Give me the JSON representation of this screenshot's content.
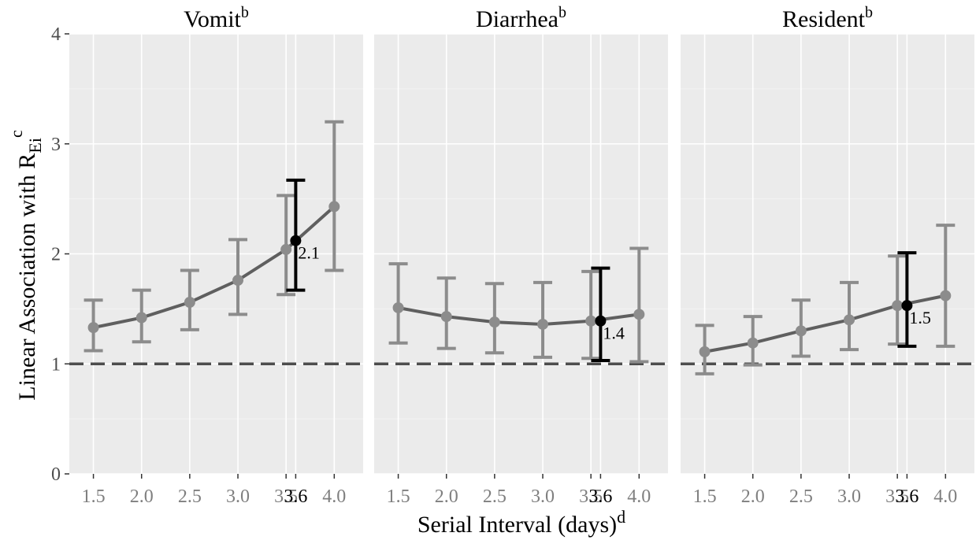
{
  "chart_data": {
    "type": "line",
    "ylabel": {
      "main": "Linear Association with R",
      "sub": "Ei",
      "sup": "c"
    },
    "xlabel": {
      "main": "Serial Interval (days)",
      "sup": "d"
    },
    "ylim": [
      0,
      4
    ],
    "yticks": [
      "0",
      "1",
      "2",
      "3",
      "4"
    ],
    "xlim": [
      1.25,
      4.3
    ],
    "reference_line": 1,
    "highlight_x": 3.6,
    "highlight_tick": "3.6",
    "grid": true,
    "colors": {
      "panel_bg": "#ebebeb",
      "grid": "#ffffff",
      "series": "#5f5f5f",
      "points": "#8c8c8c",
      "highlight": "#000000",
      "reference": "#4d4d4d"
    },
    "panels": [
      {
        "title": "Vomit",
        "title_sup": "b",
        "x": [
          1.5,
          2.0,
          2.5,
          3.0,
          3.5,
          4.0
        ],
        "xticks": [
          "1.5",
          "2.0",
          "2.5",
          "3.0",
          "3.5",
          "4.0"
        ],
        "y": [
          1.33,
          1.42,
          1.56,
          1.76,
          2.04,
          2.43
        ],
        "lower": [
          1.12,
          1.2,
          1.31,
          1.45,
          1.63,
          1.85
        ],
        "upper": [
          1.58,
          1.67,
          1.85,
          2.13,
          2.53,
          3.2
        ],
        "highlight": {
          "x": 3.6,
          "y": 2.12,
          "lower": 1.67,
          "upper": 2.67,
          "label": "2.1"
        }
      },
      {
        "title": "Diarrhea",
        "title_sup": "b",
        "x": [
          1.5,
          2.0,
          2.5,
          3.0,
          3.5,
          4.0
        ],
        "xticks": [
          "1.5",
          "2.0",
          "2.5",
          "3.0",
          "3.5",
          "4.0"
        ],
        "y": [
          1.51,
          1.43,
          1.38,
          1.36,
          1.39,
          1.45
        ],
        "lower": [
          1.19,
          1.14,
          1.1,
          1.06,
          1.05,
          1.02
        ],
        "upper": [
          1.91,
          1.78,
          1.73,
          1.74,
          1.84,
          2.05
        ],
        "highlight": {
          "x": 3.6,
          "y": 1.39,
          "lower": 1.03,
          "upper": 1.87,
          "label": "1.4"
        }
      },
      {
        "title": "Resident",
        "title_sup": "b",
        "x": [
          1.5,
          2.0,
          2.5,
          3.0,
          3.5,
          4.0
        ],
        "xticks": [
          "1.5",
          "2.0",
          "2.5",
          "3.0",
          "3.5",
          "4.0"
        ],
        "y": [
          1.11,
          1.19,
          1.3,
          1.4,
          1.53,
          1.62
        ],
        "lower": [
          0.91,
          0.99,
          1.07,
          1.13,
          1.18,
          1.16
        ],
        "upper": [
          1.35,
          1.43,
          1.58,
          1.74,
          1.98,
          2.26
        ],
        "highlight": {
          "x": 3.6,
          "y": 1.53,
          "lower": 1.16,
          "upper": 2.01,
          "label": "1.5"
        }
      }
    ]
  }
}
